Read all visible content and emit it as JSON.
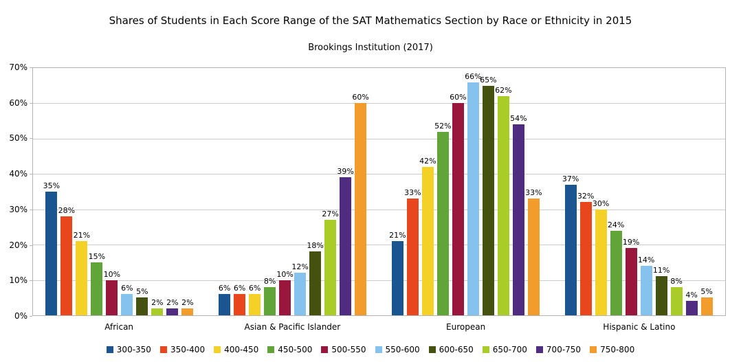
{
  "chart_data": {
    "type": "bar",
    "title": "Shares of Students in Each Score Range of the SAT Mathematics Section by Race or Ethnicity in 2015",
    "subtitle": "Brookings Institution (2017)",
    "categories": [
      "African",
      "Asian & Pacific Islander",
      "European",
      "Hispanic & Latino"
    ],
    "series": [
      {
        "name": "300-350",
        "color": "#1a5591",
        "values": [
          35,
          6,
          21,
          37
        ]
      },
      {
        "name": "350-400",
        "color": "#e8471e",
        "values": [
          28,
          6,
          33,
          32
        ]
      },
      {
        "name": "400-450",
        "color": "#f3d127",
        "values": [
          21,
          6,
          42,
          30
        ]
      },
      {
        "name": "450-500",
        "color": "#61a437",
        "values": [
          15,
          8,
          52,
          24
        ]
      },
      {
        "name": "500-550",
        "color": "#99173c",
        "values": [
          10,
          10,
          60,
          19
        ]
      },
      {
        "name": "550-600",
        "color": "#85c3ee",
        "values": [
          6,
          12,
          66,
          14
        ]
      },
      {
        "name": "600-650",
        "color": "#45510e",
        "values": [
          5,
          18,
          65,
          11
        ]
      },
      {
        "name": "650-700",
        "color": "#a9cc29",
        "values": [
          2,
          27,
          62,
          8
        ]
      },
      {
        "name": "700-750",
        "color": "#4f2c80",
        "values": [
          2,
          39,
          54,
          4
        ]
      },
      {
        "name": "750-800",
        "color": "#f29c2b",
        "values": [
          2,
          60,
          33,
          5
        ]
      }
    ],
    "ylim": [
      0,
      70
    ],
    "ytick_step": 10,
    "yticks": [
      "0%",
      "10%",
      "20%",
      "30%",
      "40%",
      "50%",
      "60%",
      "70%"
    ],
    "grid": true,
    "legend_position": "bottom",
    "value_suffix": "%",
    "xlabel": "",
    "ylabel": ""
  }
}
